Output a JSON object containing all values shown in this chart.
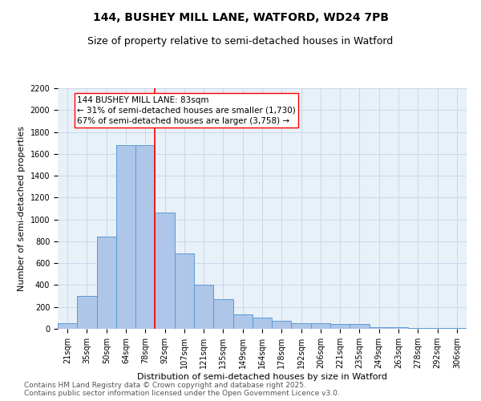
{
  "title1": "144, BUSHEY MILL LANE, WATFORD, WD24 7PB",
  "title2": "Size of property relative to semi-detached houses in Watford",
  "xlabel": "Distribution of semi-detached houses by size in Watford",
  "ylabel": "Number of semi-detached properties",
  "categories": [
    "21sqm",
    "35sqm",
    "50sqm",
    "64sqm",
    "78sqm",
    "92sqm",
    "107sqm",
    "121sqm",
    "135sqm",
    "149sqm",
    "164sqm",
    "178sqm",
    "192sqm",
    "206sqm",
    "221sqm",
    "235sqm",
    "249sqm",
    "263sqm",
    "278sqm",
    "292sqm",
    "306sqm"
  ],
  "bar_heights": [
    55,
    300,
    840,
    1680,
    1680,
    1060,
    690,
    400,
    270,
    130,
    100,
    70,
    55,
    50,
    45,
    45,
    15,
    15,
    5,
    5,
    5
  ],
  "bar_color": "#aec6e8",
  "bar_edge_color": "#5b9bd5",
  "grid_color": "#c8d8ea",
  "background_color": "#e8f0f8",
  "fig_background": "#ffffff",
  "vline_color": "red",
  "vline_x_idx": 4.5,
  "annotation_title": "144 BUSHEY MILL LANE: 83sqm",
  "annotation_line1": "← 31% of semi-detached houses are smaller (1,730)",
  "annotation_line2": "67% of semi-detached houses are larger (3,758) →",
  "annotation_box_color": "white",
  "annotation_box_edge": "red",
  "ylim": [
    0,
    2200
  ],
  "yticks": [
    0,
    200,
    400,
    600,
    800,
    1000,
    1200,
    1400,
    1600,
    1800,
    2000,
    2200
  ],
  "footer1": "Contains HM Land Registry data © Crown copyright and database right 2025.",
  "footer2": "Contains public sector information licensed under the Open Government Licence v3.0.",
  "title1_fontsize": 10,
  "title2_fontsize": 9,
  "axis_label_fontsize": 8,
  "tick_fontsize": 7,
  "annot_fontsize": 7.5,
  "footer_fontsize": 6.5
}
